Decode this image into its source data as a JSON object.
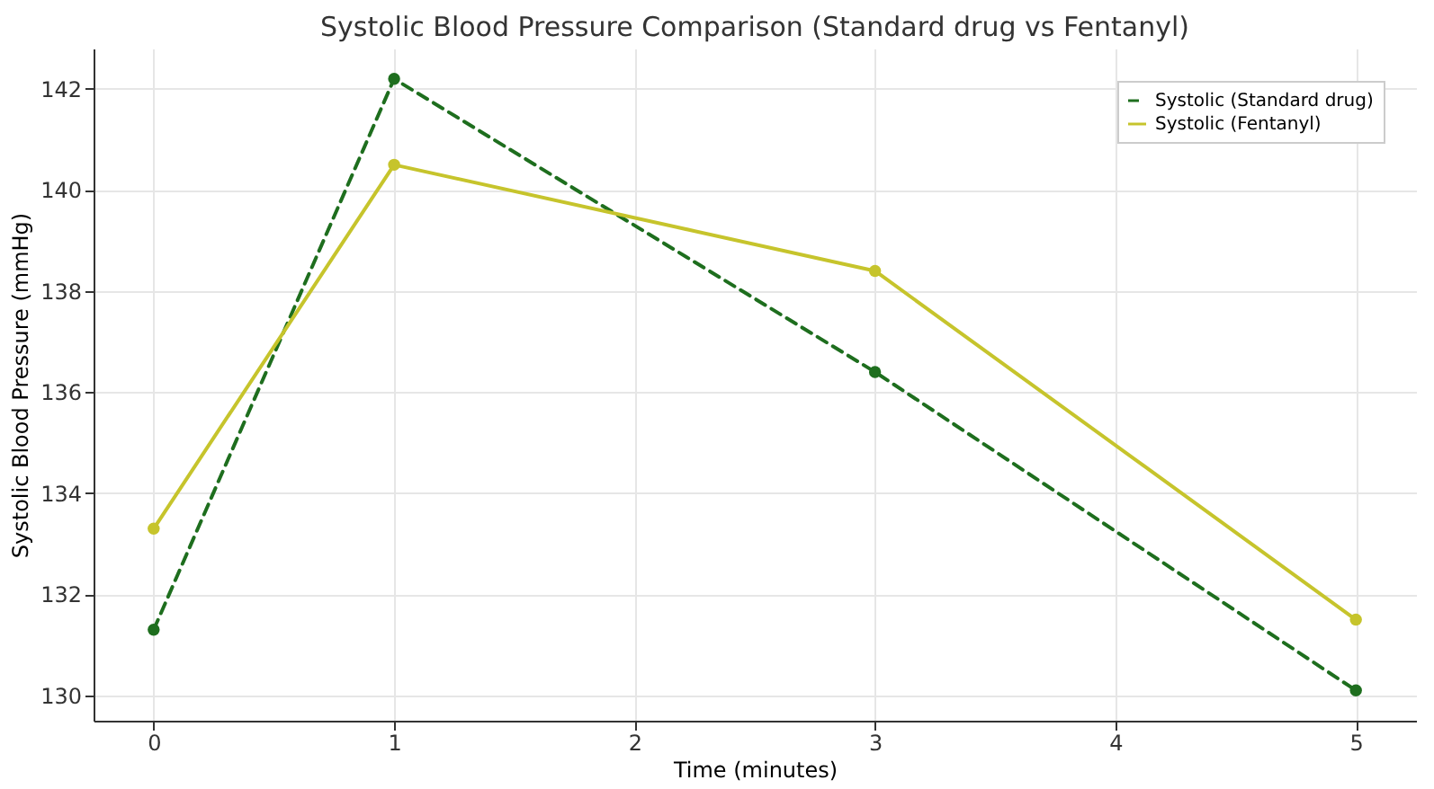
{
  "chart_data": {
    "type": "line",
    "title": "Systolic Blood Pressure Comparison (Standard drug vs Fentanyl)",
    "xlabel": "Time (minutes)",
    "ylabel": "Systolic Blood Pressure (mmHg)",
    "x": [
      0,
      1,
      3,
      5
    ],
    "series": [
      {
        "name": "Systolic (Standard drug)",
        "color": "#1e6e1e",
        "values": [
          131.3,
          142.2,
          136.4,
          130.1
        ],
        "line_style": "dashed"
      },
      {
        "name": "Systolic (Fentanyl)",
        "color": "#c6c42c",
        "values": [
          133.3,
          140.5,
          138.4,
          131.5
        ],
        "line_style": "solid"
      }
    ],
    "xlim": [
      -0.25,
      5.25
    ],
    "xticks": [
      0,
      1,
      2,
      3,
      4,
      5
    ],
    "ylim": [
      129.5,
      142.8
    ],
    "yticks": [
      130,
      132,
      134,
      136,
      138,
      140,
      142
    ],
    "grid": true,
    "legend": "top right",
    "marker": "circle"
  }
}
